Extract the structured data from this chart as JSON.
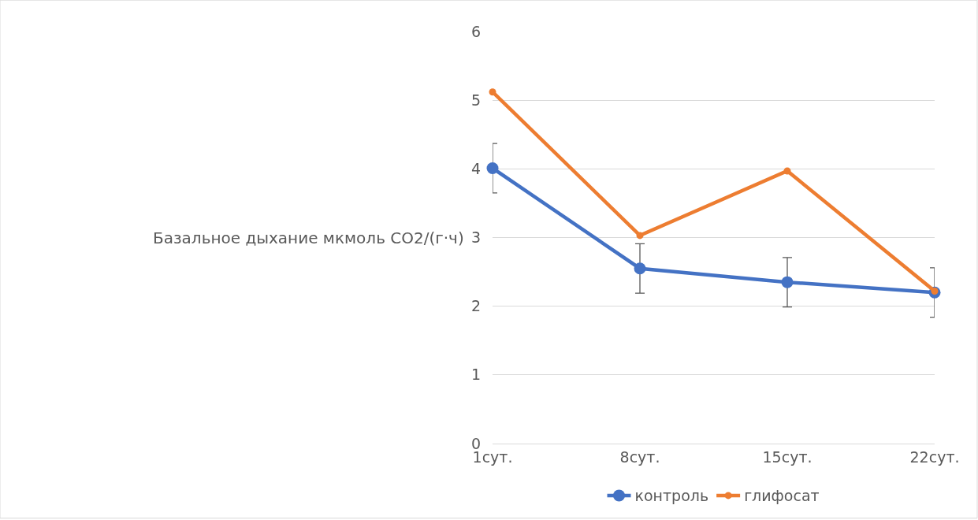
{
  "chart_data": {
    "type": "line",
    "ylabel": "Базальное дыхание мкмоль CO2/(г·ч)",
    "categories": [
      "1сут.",
      "8сут.",
      "15сут.",
      "22сут."
    ],
    "series": [
      {
        "name": "контроль",
        "color": "#4472c4",
        "values": [
          4.01,
          2.55,
          2.35,
          2.2
        ],
        "errors": [
          0.36,
          0.36,
          0.36,
          0.36
        ]
      },
      {
        "name": "глифосат",
        "color": "#ed7d31",
        "values": [
          5.12,
          3.03,
          3.97,
          2.22
        ]
      }
    ],
    "ylim": [
      0,
      6
    ],
    "yticks": [
      0,
      1,
      2,
      3,
      4,
      5,
      6
    ],
    "grid": "y",
    "legend": "bottom",
    "marker": "circle",
    "line_style": "solid"
  }
}
